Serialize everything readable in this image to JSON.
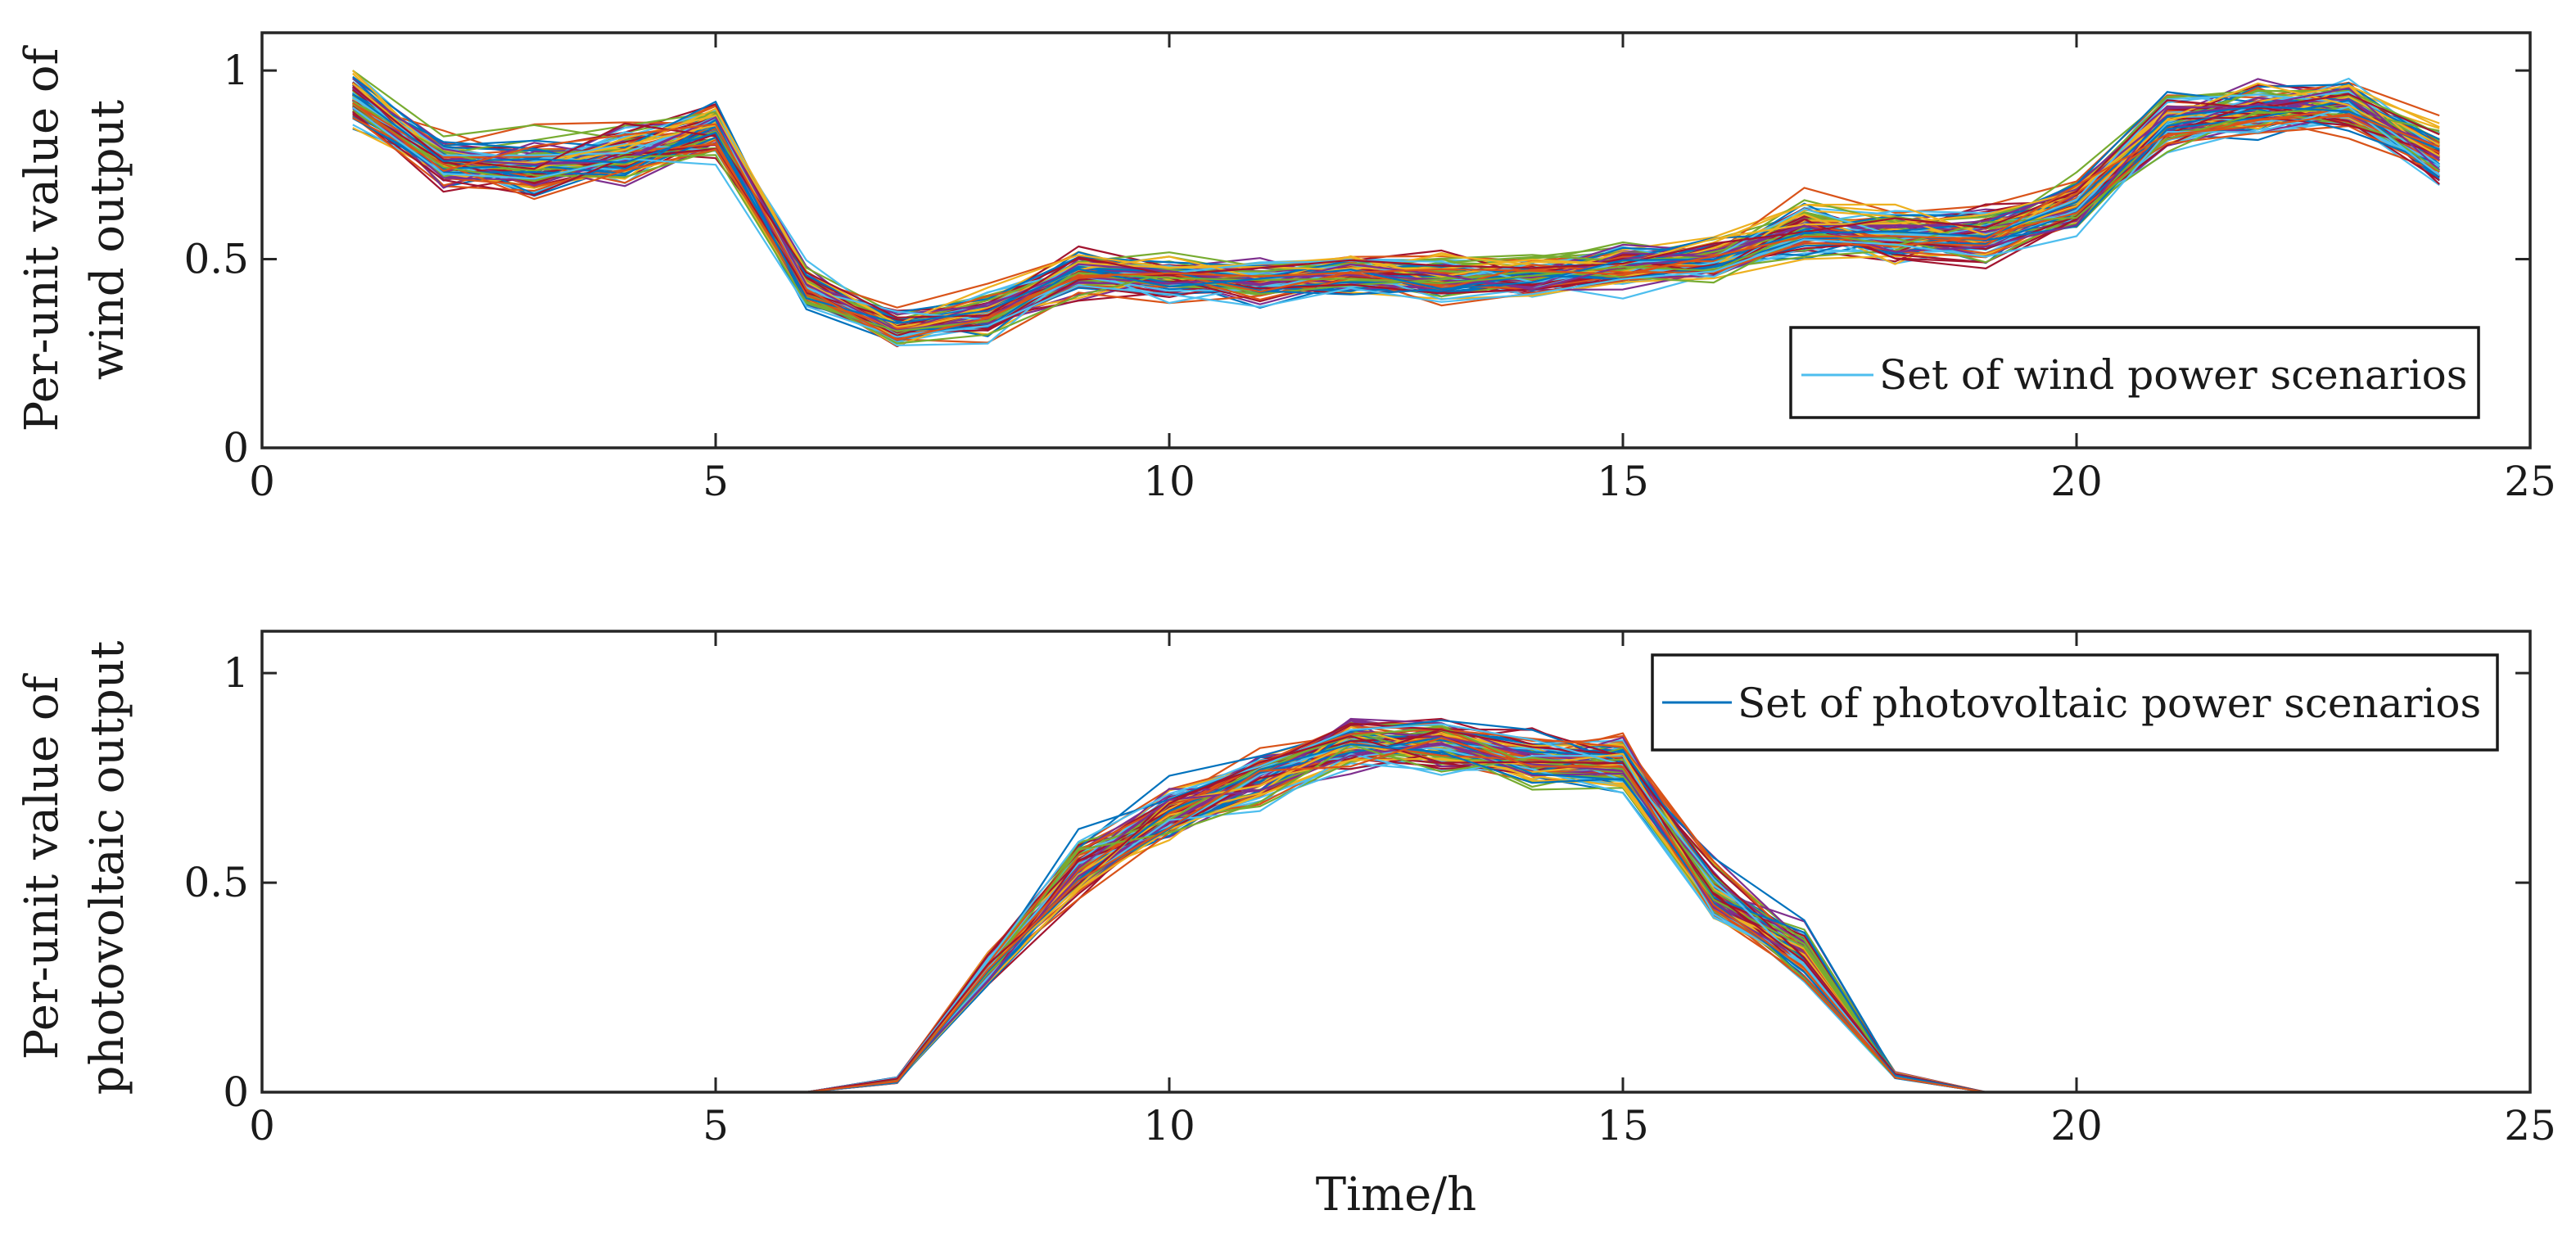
{
  "chart_data": [
    {
      "type": "line",
      "id": "wind",
      "title": "",
      "xlabel": "",
      "ylabel_lines": [
        "Per-unit value of",
        "wind output"
      ],
      "xlim": [
        0,
        25
      ],
      "ylim": [
        0,
        1.1
      ],
      "xticks": [
        0,
        5,
        10,
        15,
        20,
        25
      ],
      "xtick_labels": [
        "0",
        "5",
        "10",
        "15",
        "20",
        "25"
      ],
      "yticks": [
        0,
        0.5,
        1
      ],
      "ytick_labels": [
        "0",
        "0.5",
        "1"
      ],
      "legend": {
        "label": "Set of wind power scenarios",
        "color": "#4DBEEE",
        "position": "lower-right"
      },
      "scenario_count": 100,
      "x": [
        1,
        2,
        3,
        4,
        5,
        6,
        7,
        8,
        9,
        10,
        11,
        12,
        13,
        14,
        15,
        16,
        17,
        18,
        19,
        20,
        21,
        22,
        23,
        24
      ],
      "mean": [
        0.93,
        0.75,
        0.74,
        0.78,
        0.84,
        0.42,
        0.31,
        0.35,
        0.46,
        0.45,
        0.44,
        0.46,
        0.45,
        0.45,
        0.48,
        0.5,
        0.58,
        0.56,
        0.56,
        0.64,
        0.86,
        0.89,
        0.91,
        0.78
      ],
      "spread": [
        0.05,
        0.05,
        0.06,
        0.06,
        0.05,
        0.04,
        0.03,
        0.04,
        0.04,
        0.04,
        0.04,
        0.04,
        0.04,
        0.04,
        0.04,
        0.04,
        0.05,
        0.05,
        0.05,
        0.05,
        0.05,
        0.05,
        0.05,
        0.06
      ],
      "scenarios_sample": [
        [
          0.93,
          0.75,
          0.74,
          0.78,
          0.84,
          0.42,
          0.31,
          0.35,
          0.46,
          0.45,
          0.44,
          0.46,
          0.45,
          0.45,
          0.48,
          0.5,
          0.58,
          0.56,
          0.56,
          0.64,
          0.86,
          0.89,
          0.91,
          0.78
        ],
        [
          0.98,
          0.8,
          0.8,
          0.84,
          0.9,
          0.46,
          0.33,
          0.38,
          0.5,
          0.49,
          0.48,
          0.5,
          0.49,
          0.49,
          0.52,
          0.54,
          0.63,
          0.61,
          0.61,
          0.69,
          0.91,
          0.94,
          0.96,
          0.84
        ],
        [
          0.88,
          0.7,
          0.68,
          0.72,
          0.79,
          0.38,
          0.28,
          0.32,
          0.42,
          0.41,
          0.4,
          0.42,
          0.41,
          0.41,
          0.44,
          0.46,
          0.53,
          0.51,
          0.51,
          0.59,
          0.81,
          0.84,
          0.86,
          0.72
        ]
      ]
    },
    {
      "type": "line",
      "id": "pv",
      "title": "",
      "xlabel": "Time/h",
      "ylabel_lines": [
        "Per-unit value of",
        "photovoltaic output"
      ],
      "xlim": [
        0,
        25
      ],
      "ylim": [
        0,
        1.1
      ],
      "xticks": [
        0,
        5,
        10,
        15,
        20,
        25
      ],
      "xtick_labels": [
        "0",
        "5",
        "10",
        "15",
        "20",
        "25"
      ],
      "yticks": [
        0,
        0.5,
        1
      ],
      "ytick_labels": [
        "0",
        "0.5",
        "1"
      ],
      "legend": {
        "label": "Set of photovoltaic power scenarios",
        "color": "#0072BD",
        "position": "top-right"
      },
      "scenario_count": 100,
      "x": [
        1,
        2,
        3,
        4,
        5,
        6,
        7,
        8,
        9,
        10,
        11,
        12,
        13,
        14,
        15,
        16,
        17,
        18,
        19,
        20,
        21,
        22,
        23,
        24
      ],
      "mean": [
        0,
        0,
        0,
        0,
        0,
        0,
        0.03,
        0.29,
        0.53,
        0.66,
        0.75,
        0.83,
        0.83,
        0.79,
        0.78,
        0.48,
        0.33,
        0.04,
        0,
        0,
        0,
        0,
        0,
        0
      ],
      "spread": [
        0,
        0,
        0,
        0,
        0,
        0,
        0.005,
        0.03,
        0.05,
        0.05,
        0.05,
        0.05,
        0.05,
        0.05,
        0.05,
        0.05,
        0.05,
        0.005,
        0,
        0,
        0,
        0,
        0,
        0
      ],
      "scenarios_sample": [
        [
          0,
          0,
          0,
          0,
          0,
          0,
          0.03,
          0.29,
          0.53,
          0.66,
          0.75,
          0.83,
          0.83,
          0.79,
          0.78,
          0.48,
          0.33,
          0.04,
          0,
          0,
          0,
          0,
          0,
          0
        ],
        [
          0,
          0,
          0,
          0,
          0,
          0,
          0.03,
          0.32,
          0.58,
          0.71,
          0.8,
          0.88,
          0.88,
          0.84,
          0.83,
          0.53,
          0.38,
          0.045,
          0,
          0,
          0,
          0,
          0,
          0
        ],
        [
          0,
          0,
          0,
          0,
          0,
          0,
          0.025,
          0.26,
          0.48,
          0.61,
          0.7,
          0.78,
          0.78,
          0.74,
          0.73,
          0.43,
          0.28,
          0.035,
          0,
          0,
          0,
          0,
          0,
          0
        ]
      ]
    }
  ],
  "palette": [
    "#0072BD",
    "#D95319",
    "#EDB120",
    "#7E2F8E",
    "#77AC30",
    "#4DBEEE",
    "#A2142F"
  ]
}
